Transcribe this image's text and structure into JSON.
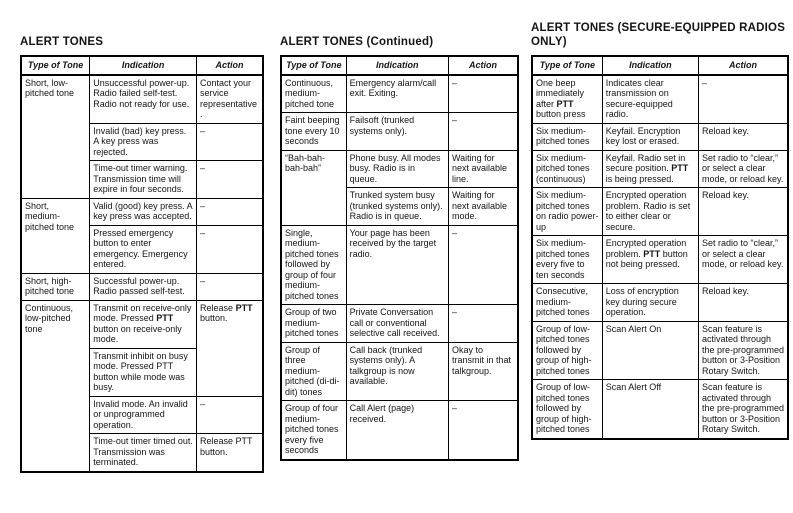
{
  "page": {
    "background": "#ffffff",
    "text_color": "#141414",
    "border_color": "#000000"
  },
  "formatting": {
    "bold_token": "PTT"
  },
  "tables": [
    {
      "title": "ALERT TONES",
      "columns": [
        "Type of Tone",
        "Indication",
        "Action"
      ],
      "groups": [
        {
          "tone": "Short, low-pitched tone",
          "rows": [
            {
              "indication": "Unsuccessful power-up. Radio failed self-test. Radio not ready for use.",
              "action": "Contact your service representative."
            },
            {
              "indication": "Invalid (bad) key press. A key press was rejected.",
              "action": "–"
            },
            {
              "indication": "Time-out timer warning. Transmission time will expire in four seconds.",
              "action": "–"
            }
          ]
        },
        {
          "tone": "Short, medium-pitched tone",
          "rows": [
            {
              "indication": "Valid (good) key press. A key press was accepted.",
              "action": "–"
            },
            {
              "indication": "Pressed emergency button to enter emergency. Emergency entered.",
              "action": "–"
            }
          ]
        },
        {
          "tone": "Short, high-pitched tone",
          "rows": [
            {
              "indication": "Successful power-up. Radio passed self-test.",
              "action": "–"
            }
          ]
        },
        {
          "tone": "Continuous, low-pitched tone",
          "rows": [
            {
              "indication": "Transmit on receive-only mode. Pressed PTT button on receive-only mode.",
              "indication_bold": true,
              "action": "Release PTT button.",
              "action_bold": true,
              "action_rowspan": 2
            },
            {
              "indication": "Transmit inhibit on busy mode. Pressed PTT button while mode was busy.",
              "action": null
            },
            {
              "indication": "Invalid mode. An invalid or unprogrammed operation.",
              "action": "–"
            },
            {
              "indication": "Time-out timer timed out. Transmission was terminated.",
              "action": "Release PTT button."
            }
          ]
        }
      ]
    },
    {
      "title": "ALERT TONES (Continued)",
      "columns": [
        "Type of Tone",
        "Indication",
        "Action"
      ],
      "groups": [
        {
          "tone": "Continuous, medium-pitched tone",
          "rows": [
            {
              "indication": "Emergency alarm/call exit. Exiting.",
              "action": "–"
            }
          ]
        },
        {
          "tone": "Faint beeping tone every 10 seconds",
          "rows": [
            {
              "indication": "Failsoft (trunked systems only).",
              "action": "–"
            }
          ]
        },
        {
          "tone": "“Bah-bah-bah-bah”",
          "rows": [
            {
              "indication": "Phone busy. All modes busy. Radio is in queue.",
              "action": "Waiting for next available line."
            },
            {
              "indication": "Trunked system busy (trunked systems only). Radio is in queue.",
              "action": "Waiting for next available mode."
            }
          ]
        },
        {
          "tone": "Single, medium-pitched tones followed by group of four medium-pitched tones",
          "rows": [
            {
              "indication": "Your page has been received by the target radio.",
              "action": "–"
            }
          ]
        },
        {
          "tone": "Group of two medium-pitched tones",
          "rows": [
            {
              "indication": "Private Conversation call or conventional selective call received.",
              "action": "–"
            }
          ]
        },
        {
          "tone": "Group of three medium-pitched (di-di-dit) tones",
          "rows": [
            {
              "indication": "Call back (trunked systems only). A talkgroup is now available.",
              "action": "Okay to transmit in that talkgroup."
            }
          ]
        },
        {
          "tone": "Group of four medium-pitched tones every five seconds",
          "rows": [
            {
              "indication": "Call Alert (page) received.",
              "action": "–"
            }
          ]
        }
      ]
    },
    {
      "title": "ALERT TONES (SECURE-EQUIPPED RADIOS ONLY)",
      "columns": [
        "Type of Tone",
        "Indication",
        "Action"
      ],
      "groups": [
        {
          "tone": "One beep immediately after PTT button press",
          "tone_bold": true,
          "rows": [
            {
              "indication": "Indicates clear transmission on secure-equipped radio.",
              "action": "–"
            }
          ]
        },
        {
          "tone": "Six medium-pitched tones",
          "rows": [
            {
              "indication": "Keyfail. Encryption key lost or erased.",
              "action": "Reload key."
            }
          ]
        },
        {
          "tone": "Six medium-pitched tones (continuous)",
          "rows": [
            {
              "indication": "Keyfail. Radio set in secure position. PTT is being pressed.",
              "indication_bold": true,
              "action": "Set radio to “clear,” or select a clear mode, or reload key."
            }
          ]
        },
        {
          "tone": "Six medium-pitched tones on radio power-up",
          "rows": [
            {
              "indication": "Encrypted operation problem. Radio is set to either clear or secure.",
              "action": "Reload key."
            }
          ]
        },
        {
          "tone": "Six medium-pitched tones every five to ten seconds",
          "rows": [
            {
              "indication": "Encrypted operation problem. PTT button not being pressed.",
              "indication_bold": true,
              "action": "Set radio to “clear,” or select a clear mode, or reload key."
            }
          ]
        },
        {
          "tone": "Consecutive, medium-pitched tones",
          "rows": [
            {
              "indication": "Loss of encryption key during secure operation.",
              "action": "Reload key."
            }
          ]
        },
        {
          "tone": "Group of low-pitched tones followed by group of high-pitched tones",
          "rows": [
            {
              "indication": "Scan Alert On",
              "action": "Scan feature is activated through the pre-programmed button or 3-Position Rotary Switch."
            }
          ]
        },
        {
          "tone": "Group of low-pitched tones followed by group of high-pitched tones",
          "rows": [
            {
              "indication": "Scan Alert Off",
              "action": "Scan feature is activated through the pre-programmed button or 3-Position Rotary Switch."
            }
          ]
        }
      ]
    }
  ]
}
